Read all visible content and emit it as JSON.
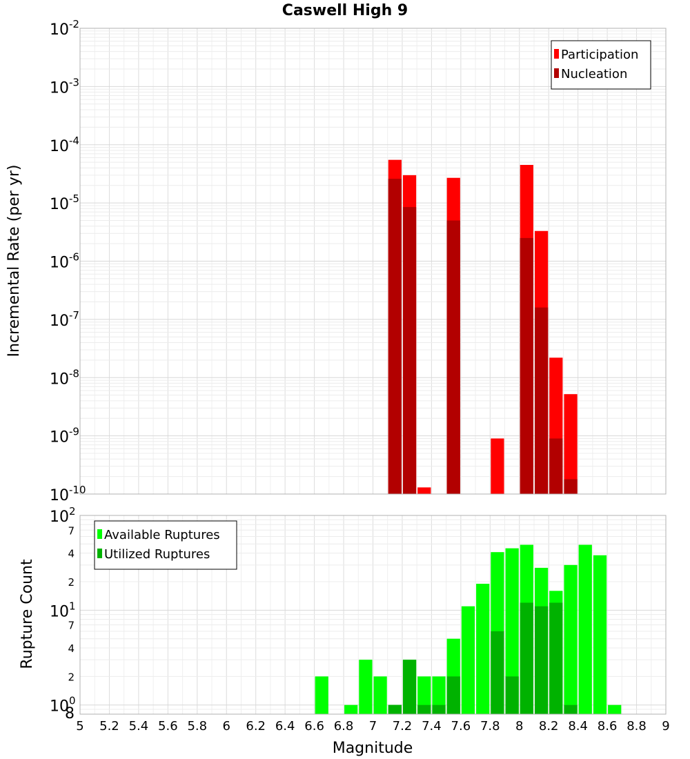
{
  "chart_data": [
    {
      "type": "bar",
      "title": "Caswell High 9",
      "ylabel": "Incremental Rate (per yr)",
      "xlabel": "",
      "yscale": "log",
      "ylim": [
        1e-10,
        0.01
      ],
      "xlim": [
        5,
        9
      ],
      "legend_position": "top-right",
      "y_ticks": [
        {
          "base": "10",
          "exp": "-10"
        },
        {
          "base": "10",
          "exp": "-9"
        },
        {
          "base": "10",
          "exp": "-8"
        },
        {
          "base": "10",
          "exp": "-7"
        },
        {
          "base": "10",
          "exp": "-6"
        },
        {
          "base": "10",
          "exp": "-5"
        },
        {
          "base": "10",
          "exp": "-4"
        },
        {
          "base": "10",
          "exp": "-3"
        },
        {
          "base": "10",
          "exp": "-2"
        }
      ],
      "bin_width": 0.1,
      "series": [
        {
          "name": "Participation",
          "color": "#ff0000",
          "points": [
            {
              "x": 7.15,
              "y": 5.5e-05
            },
            {
              "x": 7.25,
              "y": 3e-05
            },
            {
              "x": 7.35,
              "y": 1.3e-10
            },
            {
              "x": 7.55,
              "y": 2.7e-05
            },
            {
              "x": 7.85,
              "y": 9e-10
            },
            {
              "x": 8.05,
              "y": 4.5e-05
            },
            {
              "x": 8.15,
              "y": 3.3e-06
            },
            {
              "x": 8.25,
              "y": 2.2e-08
            },
            {
              "x": 8.35,
              "y": 5.2e-09
            }
          ]
        },
        {
          "name": "Nucleation",
          "color": "#b20000",
          "points": [
            {
              "x": 7.15,
              "y": 2.6e-05
            },
            {
              "x": 7.25,
              "y": 8.5e-06
            },
            {
              "x": 7.55,
              "y": 5e-06
            },
            {
              "x": 8.05,
              "y": 2.5e-06
            },
            {
              "x": 8.15,
              "y": 1.6e-07
            },
            {
              "x": 8.25,
              "y": 9e-10
            },
            {
              "x": 8.35,
              "y": 1.8e-10
            }
          ]
        }
      ]
    },
    {
      "type": "bar",
      "title": "",
      "ylabel": "Rupture Count",
      "xlabel": "Magnitude",
      "yscale": "log",
      "ylim": [
        0.8,
        100
      ],
      "xlim": [
        5,
        9
      ],
      "legend_position": "top-left",
      "x_ticks": [
        "5",
        "5.2",
        "5.4",
        "5.6",
        "5.8",
        "6",
        "6.2",
        "6.4",
        "6.6",
        "6.8",
        "7",
        "7.2",
        "7.4",
        "7.6",
        "7.8",
        "8",
        "8.2",
        "8.4",
        "8.6",
        "8.8",
        "9"
      ],
      "y_ticks": [
        {
          "base": "10",
          "exp": "0",
          "value": 1
        },
        {
          "base": "10",
          "exp": "1",
          "value": 10
        },
        {
          "base": "10",
          "exp": "2",
          "value": 100
        }
      ],
      "y_minor_ticks": [
        {
          "label": "8",
          "value": 0.8
        },
        {
          "label": "2",
          "value": 2
        },
        {
          "label": "4",
          "value": 4
        },
        {
          "label": "7",
          "value": 7
        },
        {
          "label": "2",
          "value": 20
        },
        {
          "label": "4",
          "value": 40
        },
        {
          "label": "7",
          "value": 70
        }
      ],
      "bin_width": 0.1,
      "series": [
        {
          "name": "Available Ruptures",
          "color": "#00ff00",
          "points": [
            {
              "x": 6.65,
              "y": 2
            },
            {
              "x": 6.85,
              "y": 1
            },
            {
              "x": 6.95,
              "y": 3
            },
            {
              "x": 7.05,
              "y": 2
            },
            {
              "x": 7.15,
              "y": 1
            },
            {
              "x": 7.25,
              "y": 3
            },
            {
              "x": 7.35,
              "y": 2
            },
            {
              "x": 7.45,
              "y": 2
            },
            {
              "x": 7.55,
              "y": 5
            },
            {
              "x": 7.65,
              "y": 11
            },
            {
              "x": 7.75,
              "y": 19
            },
            {
              "x": 7.85,
              "y": 41
            },
            {
              "x": 7.95,
              "y": 45
            },
            {
              "x": 8.05,
              "y": 49
            },
            {
              "x": 8.15,
              "y": 28
            },
            {
              "x": 8.25,
              "y": 16
            },
            {
              "x": 8.35,
              "y": 30
            },
            {
              "x": 8.45,
              "y": 49
            },
            {
              "x": 8.55,
              "y": 38
            },
            {
              "x": 8.65,
              "y": 1
            }
          ]
        },
        {
          "name": "Utilized Ruptures",
          "color": "#00b200",
          "points": [
            {
              "x": 7.15,
              "y": 1
            },
            {
              "x": 7.25,
              "y": 3
            },
            {
              "x": 7.35,
              "y": 1
            },
            {
              "x": 7.45,
              "y": 1
            },
            {
              "x": 7.55,
              "y": 2
            },
            {
              "x": 7.85,
              "y": 6
            },
            {
              "x": 7.95,
              "y": 2
            },
            {
              "x": 8.05,
              "y": 12
            },
            {
              "x": 8.15,
              "y": 11
            },
            {
              "x": 8.25,
              "y": 12
            },
            {
              "x": 8.35,
              "y": 1
            }
          ]
        }
      ]
    }
  ]
}
